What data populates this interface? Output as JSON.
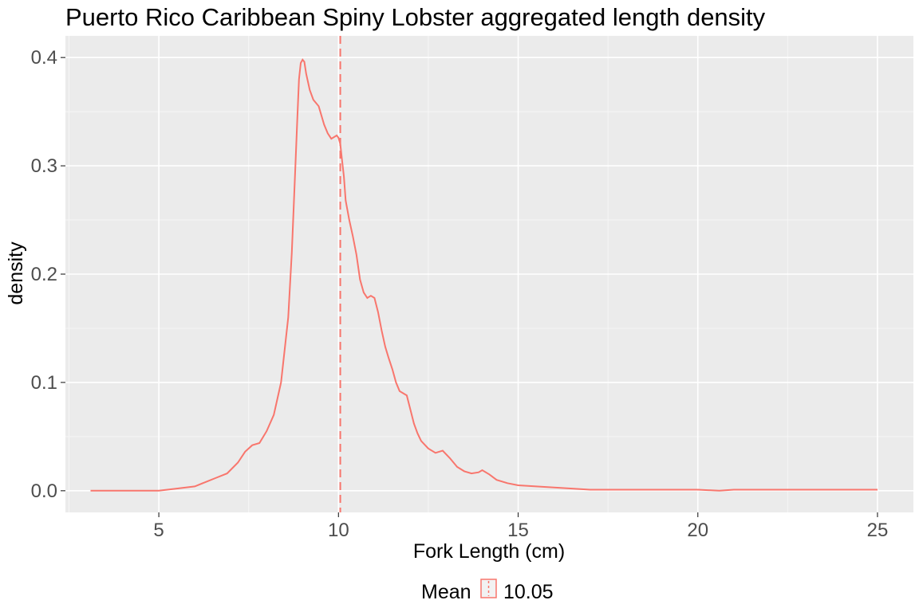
{
  "chart_data": {
    "type": "line",
    "title": "Puerto Rico Caribbean Spiny Lobster aggregated length density",
    "xlabel": "Fork Length (cm)",
    "ylabel": "density",
    "xlim": [
      2.4,
      26.0
    ],
    "ylim": [
      -0.02,
      0.42
    ],
    "x_ticks": [
      5,
      10,
      15,
      20,
      25
    ],
    "x_tick_labels": [
      "5",
      "10",
      "15",
      "20",
      "25"
    ],
    "y_ticks": [
      0.0,
      0.1,
      0.2,
      0.3,
      0.4
    ],
    "y_tick_labels": [
      "0.0",
      "0.1",
      "0.2",
      "0.3",
      "0.4"
    ],
    "grid": true,
    "line_color": "#F8766D",
    "panel_background": "#EBEBEB",
    "series": [
      {
        "x": [
          3.1,
          4.0,
          5.0,
          5.5,
          6.0,
          6.3,
          6.6,
          6.9,
          7.2,
          7.4,
          7.6,
          7.8,
          8.0,
          8.2,
          8.4,
          8.6,
          8.7,
          8.8,
          8.85,
          8.9,
          8.95,
          9.0,
          9.05,
          9.1,
          9.2,
          9.3,
          9.45,
          9.6,
          9.7,
          9.8,
          9.9,
          9.95,
          10.0,
          10.05,
          10.1,
          10.15,
          10.2,
          10.3,
          10.4,
          10.5,
          10.6,
          10.7,
          10.8,
          10.9,
          11.0,
          11.1,
          11.2,
          11.3,
          11.4,
          11.5,
          11.6,
          11.7,
          11.8,
          11.9,
          12.0,
          12.1,
          12.2,
          12.3,
          12.5,
          12.7,
          12.9,
          13.1,
          13.3,
          13.5,
          13.7,
          13.9,
          14.0,
          14.2,
          14.4,
          14.7,
          15.0,
          15.5,
          16.0,
          16.5,
          17.0,
          18.0,
          19.0,
          20.0,
          20.6,
          21.0,
          22.0,
          23.0,
          24.0,
          25.0
        ],
        "y": [
          0.0,
          0.0,
          0.0,
          0.002,
          0.004,
          0.008,
          0.012,
          0.016,
          0.026,
          0.036,
          0.042,
          0.044,
          0.055,
          0.07,
          0.1,
          0.16,
          0.22,
          0.3,
          0.34,
          0.38,
          0.395,
          0.398,
          0.396,
          0.385,
          0.37,
          0.361,
          0.355,
          0.338,
          0.33,
          0.325,
          0.327,
          0.328,
          0.326,
          0.32,
          0.305,
          0.29,
          0.268,
          0.25,
          0.235,
          0.218,
          0.195,
          0.183,
          0.178,
          0.18,
          0.178,
          0.165,
          0.148,
          0.133,
          0.122,
          0.112,
          0.1,
          0.092,
          0.09,
          0.088,
          0.075,
          0.062,
          0.053,
          0.046,
          0.039,
          0.035,
          0.037,
          0.03,
          0.022,
          0.018,
          0.016,
          0.017,
          0.019,
          0.015,
          0.01,
          0.007,
          0.005,
          0.004,
          0.003,
          0.002,
          0.001,
          0.001,
          0.001,
          0.001,
          0.0,
          0.001,
          0.001,
          0.001,
          0.001,
          0.001
        ]
      }
    ],
    "mean_line": {
      "x": 10.05,
      "style": "dashed"
    },
    "legend": {
      "placement": "bottom",
      "title": "Mean",
      "entries": [
        "10.05"
      ]
    }
  }
}
